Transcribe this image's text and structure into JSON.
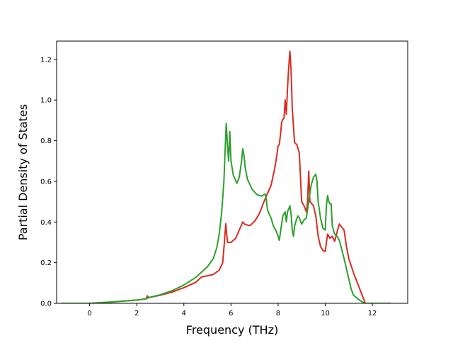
{
  "chart_data": {
    "type": "line",
    "title": "",
    "xlabel": "Frequency (THz)",
    "ylabel": "Partial Density of States",
    "xlim": [
      -1.4,
      13.5
    ],
    "ylim": [
      0.0,
      1.29
    ],
    "x_ticks": [
      0,
      2,
      4,
      6,
      8,
      10,
      12
    ],
    "y_ticks": [
      0.0,
      0.2,
      0.4,
      0.6,
      0.8,
      1.0,
      1.2
    ],
    "x_tick_labels": [
      "0",
      "2",
      "4",
      "6",
      "8",
      "10",
      "12"
    ],
    "y_tick_labels": [
      "0.0",
      "0.2",
      "0.4",
      "0.6",
      "0.8",
      "1.0",
      "1.2"
    ],
    "grid": false,
    "legend": "none",
    "series": [
      {
        "color": "#d62d20",
        "points": [
          [
            -1.2,
            0.0
          ],
          [
            0,
            0.0
          ],
          [
            1,
            0.007
          ],
          [
            2,
            0.016
          ],
          [
            2.4,
            0.022
          ],
          [
            2.45,
            0.037
          ],
          [
            2.5,
            0.028
          ],
          [
            3,
            0.04
          ],
          [
            3.5,
            0.055
          ],
          [
            4,
            0.077
          ],
          [
            4.5,
            0.103
          ],
          [
            4.75,
            0.13
          ],
          [
            5,
            0.135
          ],
          [
            5.25,
            0.142
          ],
          [
            5.5,
            0.163
          ],
          [
            5.65,
            0.2
          ],
          [
            5.72,
            0.3
          ],
          [
            5.78,
            0.392
          ],
          [
            5.85,
            0.3
          ],
          [
            6,
            0.3
          ],
          [
            6.2,
            0.32
          ],
          [
            6.35,
            0.36
          ],
          [
            6.5,
            0.4
          ],
          [
            6.6,
            0.388
          ],
          [
            6.8,
            0.382
          ],
          [
            7,
            0.403
          ],
          [
            7.2,
            0.44
          ],
          [
            7.4,
            0.5
          ],
          [
            7.5,
            0.527
          ],
          [
            7.7,
            0.58
          ],
          [
            7.85,
            0.66
          ],
          [
            7.95,
            0.73
          ],
          [
            8,
            0.775
          ],
          [
            8.05,
            0.78
          ],
          [
            8.1,
            0.83
          ],
          [
            8.15,
            0.89
          ],
          [
            8.2,
            0.905
          ],
          [
            8.25,
            0.91
          ],
          [
            8.3,
            1.0
          ],
          [
            8.35,
            0.93
          ],
          [
            8.4,
            1.06
          ],
          [
            8.45,
            1.16
          ],
          [
            8.5,
            1.24
          ],
          [
            8.55,
            1.15
          ],
          [
            8.6,
            0.96
          ],
          [
            8.7,
            0.79
          ],
          [
            8.8,
            0.78
          ],
          [
            8.9,
            0.74
          ],
          [
            9,
            0.5
          ],
          [
            9.1,
            0.48
          ],
          [
            9.2,
            0.45
          ],
          [
            9.25,
            0.5
          ],
          [
            9.3,
            0.65
          ],
          [
            9.35,
            0.5
          ],
          [
            9.5,
            0.48
          ],
          [
            9.6,
            0.43
          ],
          [
            9.7,
            0.33
          ],
          [
            9.8,
            0.28
          ],
          [
            9.9,
            0.26
          ],
          [
            10,
            0.255
          ],
          [
            10.05,
            0.3
          ],
          [
            10.1,
            0.34
          ],
          [
            10.2,
            0.32
          ],
          [
            10.3,
            0.33
          ],
          [
            10.4,
            0.305
          ],
          [
            10.5,
            0.35
          ],
          [
            10.6,
            0.39
          ],
          [
            10.7,
            0.375
          ],
          [
            10.8,
            0.36
          ],
          [
            10.9,
            0.28
          ],
          [
            11,
            0.22
          ],
          [
            11.2,
            0.15
          ],
          [
            11.4,
            0.09
          ],
          [
            11.6,
            0.03
          ],
          [
            11.7,
            0.0
          ],
          [
            12.8,
            0.0
          ]
        ]
      },
      {
        "color": "#2ca02c",
        "points": [
          [
            -1.2,
            0.0
          ],
          [
            0,
            0.0
          ],
          [
            1,
            0.007
          ],
          [
            2,
            0.016
          ],
          [
            2.4,
            0.022
          ],
          [
            2.5,
            0.028
          ],
          [
            3,
            0.042
          ],
          [
            3.5,
            0.062
          ],
          [
            4,
            0.09
          ],
          [
            4.5,
            0.127
          ],
          [
            5,
            0.18
          ],
          [
            5.25,
            0.22
          ],
          [
            5.4,
            0.275
          ],
          [
            5.5,
            0.34
          ],
          [
            5.6,
            0.44
          ],
          [
            5.7,
            0.6
          ],
          [
            5.75,
            0.75
          ],
          [
            5.8,
            0.885
          ],
          [
            5.85,
            0.78
          ],
          [
            5.9,
            0.7
          ],
          [
            5.95,
            0.845
          ],
          [
            6,
            0.7
          ],
          [
            6.1,
            0.63
          ],
          [
            6.25,
            0.59
          ],
          [
            6.35,
            0.62
          ],
          [
            6.45,
            0.7
          ],
          [
            6.5,
            0.76
          ],
          [
            6.55,
            0.73
          ],
          [
            6.6,
            0.67
          ],
          [
            6.7,
            0.61
          ],
          [
            6.9,
            0.56
          ],
          [
            7.1,
            0.535
          ],
          [
            7.3,
            0.527
          ],
          [
            7.45,
            0.538
          ],
          [
            7.5,
            0.51
          ],
          [
            7.55,
            0.46
          ],
          [
            7.6,
            0.445
          ],
          [
            7.7,
            0.42
          ],
          [
            7.8,
            0.38
          ],
          [
            7.9,
            0.36
          ],
          [
            8,
            0.33
          ],
          [
            8.05,
            0.31
          ],
          [
            8.1,
            0.35
          ],
          [
            8.2,
            0.43
          ],
          [
            8.3,
            0.45
          ],
          [
            8.35,
            0.4
          ],
          [
            8.4,
            0.45
          ],
          [
            8.5,
            0.48
          ],
          [
            8.55,
            0.44
          ],
          [
            8.6,
            0.36
          ],
          [
            8.65,
            0.33
          ],
          [
            8.7,
            0.38
          ],
          [
            8.8,
            0.42
          ],
          [
            8.85,
            0.43
          ],
          [
            8.9,
            0.42
          ],
          [
            9,
            0.39
          ],
          [
            9.1,
            0.41
          ],
          [
            9.2,
            0.42
          ],
          [
            9.3,
            0.5
          ],
          [
            9.4,
            0.58
          ],
          [
            9.5,
            0.62
          ],
          [
            9.6,
            0.635
          ],
          [
            9.65,
            0.6
          ],
          [
            9.7,
            0.5
          ],
          [
            9.8,
            0.42
          ],
          [
            9.9,
            0.37
          ],
          [
            10,
            0.36
          ],
          [
            10.05,
            0.48
          ],
          [
            10.1,
            0.53
          ],
          [
            10.15,
            0.5
          ],
          [
            10.2,
            0.49
          ],
          [
            10.25,
            0.49
          ],
          [
            10.3,
            0.38
          ],
          [
            10.4,
            0.34
          ],
          [
            10.5,
            0.33
          ],
          [
            10.6,
            0.31
          ],
          [
            10.8,
            0.22
          ],
          [
            11,
            0.12
          ],
          [
            11.1,
            0.07
          ],
          [
            11.2,
            0.04
          ],
          [
            11.4,
            0.02
          ],
          [
            11.6,
            0.005
          ],
          [
            11.7,
            0.0
          ],
          [
            12.8,
            0.0
          ]
        ]
      }
    ]
  }
}
